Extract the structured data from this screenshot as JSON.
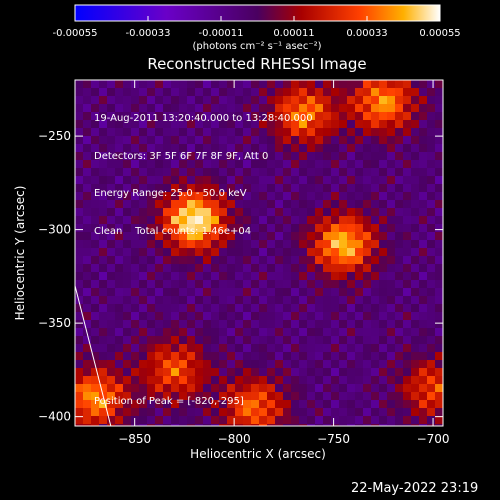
{
  "chart_data": {
    "type": "heatmap",
    "title": "Reconstructed RHESSI Image",
    "xlabel": "Heliocentric X (arcsec)",
    "ylabel": "Heliocentric Y (arcsec)",
    "xlim": [
      -880,
      -695
    ],
    "ylim": [
      -405,
      -220
    ],
    "xticks": [
      -850,
      -800,
      -750,
      -700
    ],
    "yticks": [
      -250,
      -300,
      -350,
      -400
    ],
    "colorbar": {
      "ticks": [
        "-0.00055",
        "-0.00033",
        "-0.00011",
        "0.00011",
        "0.00033",
        "0.00055"
      ],
      "unit_label": "(photons cm⁻² s⁻¹ asec⁻²)",
      "range": [
        -0.00055,
        0.00055
      ]
    },
    "peak": {
      "x": -820,
      "y": -295
    },
    "sources": [
      {
        "x": -820,
        "y": -295,
        "intensity": 1.0
      },
      {
        "x": -745,
        "y": -308,
        "intensity": 0.85
      },
      {
        "x": -765,
        "y": -238,
        "intensity": 0.7
      },
      {
        "x": -725,
        "y": -232,
        "intensity": 0.75
      },
      {
        "x": -870,
        "y": -390,
        "intensity": 0.75
      },
      {
        "x": -830,
        "y": -375,
        "intensity": 0.6
      },
      {
        "x": -790,
        "y": -395,
        "intensity": 0.65
      },
      {
        "x": -700,
        "y": -385,
        "intensity": 0.55
      }
    ],
    "limb_line": [
      [
        -880,
        -330
      ],
      [
        -862,
        -405
      ]
    ],
    "annotations": [
      "19-Aug-2011 13:20:40.000 to 13:28:40.000",
      "Detectors: 3F 5F 6F 7F 8F 9F, Att 0",
      "Energy Range: 25.0 - 50.0 keV",
      "Clean    Total counts: 1.46e+04"
    ],
    "peak_label": "Position of Peak = [-820,-295]"
  },
  "footer": {
    "timestamp": "22-May-2022 23:19"
  }
}
